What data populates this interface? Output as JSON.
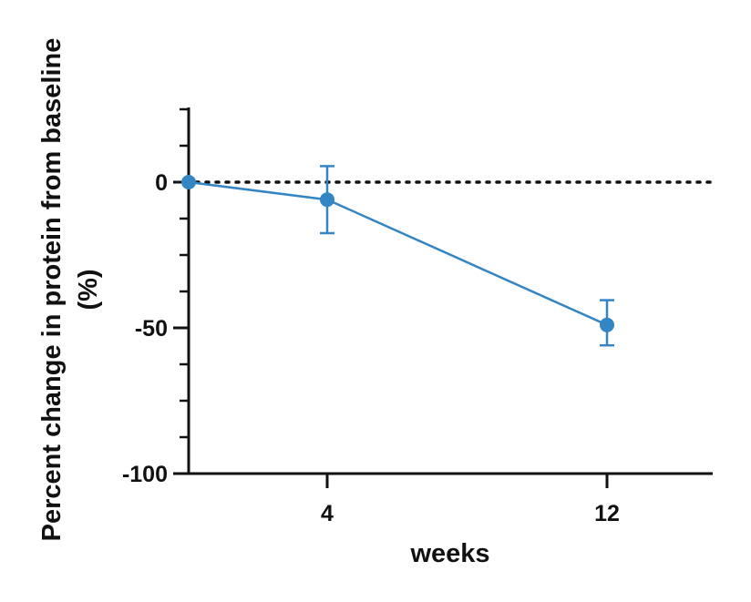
{
  "chart_data": {
    "type": "line",
    "title": "",
    "xlabel": "weeks",
    "ylabel_lines": [
      "Percent change in protein from baseline",
      "(%)"
    ],
    "x_axis": {
      "scale": "categorical-ordinal",
      "tick_labels": [
        "4",
        "12"
      ]
    },
    "y_axis": {
      "ylim": [
        -100,
        25
      ],
      "major_ticks": [
        0,
        -50,
        -100
      ],
      "tick_labels": [
        "0",
        "-50",
        "-100"
      ],
      "minor_ticks": [
        25,
        12.5,
        -12.5,
        -25,
        -37.5,
        -62.5,
        -75,
        -87.5
      ]
    },
    "reference_line": {
      "y": 0,
      "style": "dotted"
    },
    "series": [
      {
        "x": [
          "0",
          "4",
          "12"
        ],
        "values": [
          0,
          -6,
          -49
        ],
        "error_upper": [
          0,
          5.5,
          -40.5
        ],
        "error_lower": [
          0,
          -17.5,
          -56
        ],
        "color": "#3385c4"
      }
    ],
    "grid": false,
    "legend": "none"
  }
}
